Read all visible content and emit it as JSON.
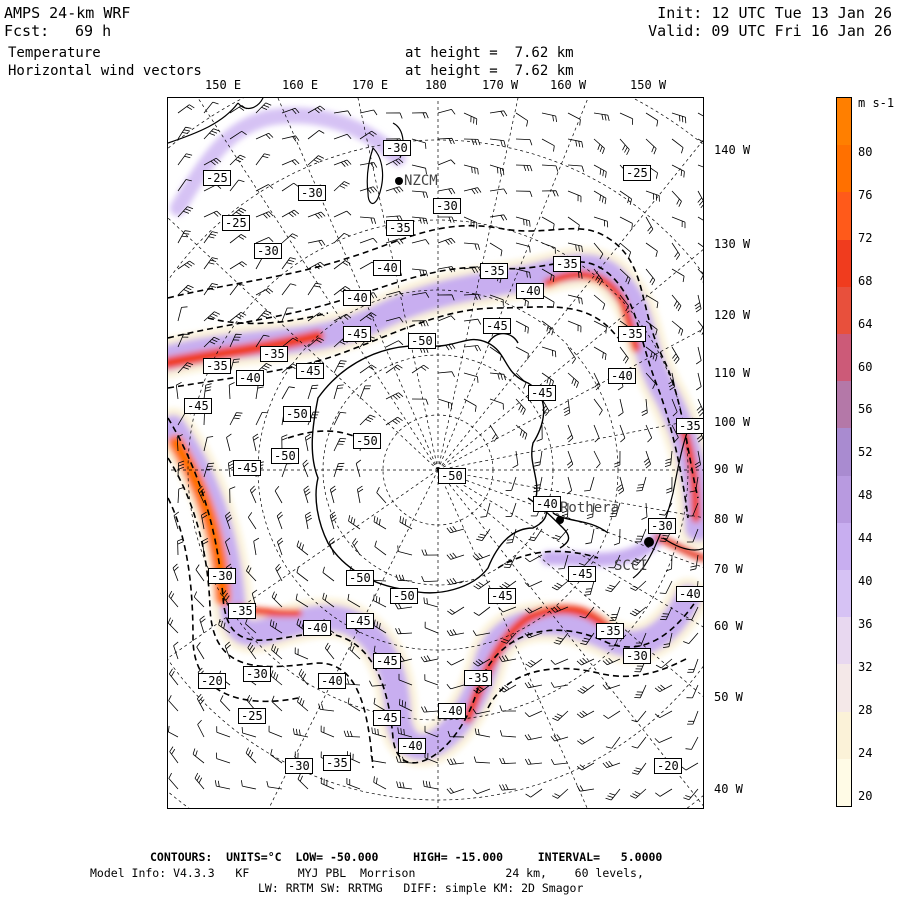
{
  "header": {
    "model": "AMPS 24-km WRF",
    "fcst_label": "Fcst:",
    "fcst_value": "69 h",
    "field1": "Temperature",
    "field2": "Horizontal wind vectors",
    "height1": "at height =  7.62 km",
    "height2": "at height =  7.62 km",
    "init": "Init: 12 UTC Tue 13 Jan 26",
    "valid": "Valid: 09 UTC Fri 16 Jan 26"
  },
  "lon_top": [
    "150 E",
    "160 E",
    "170 E",
    "180",
    "170 W",
    "160 W",
    "150 W"
  ],
  "lon_right": [
    "140 W",
    "130 W",
    "120 W",
    "110 W",
    "100 W",
    "90 W",
    "80 W",
    "70 W",
    "60 W",
    "50 W",
    "40 W"
  ],
  "stations": [
    "NZCM",
    "Rothera",
    "SCCI"
  ],
  "contour_labels": [
    "-20",
    "-25",
    "-30",
    "-35",
    "-40",
    "-45",
    "-50"
  ],
  "colorbar": {
    "unit": "m s-1",
    "ticks": [
      "80",
      "76",
      "72",
      "68",
      "64",
      "60",
      "56",
      "52",
      "48",
      "44",
      "40",
      "36",
      "32",
      "28",
      "24",
      "20"
    ],
    "colors": [
      "#ff7f00",
      "#ff7000",
      "#ff5a1a",
      "#f03c1e",
      "#e8503c",
      "#cc5a78",
      "#b478a8",
      "#a98bd0",
      "#b89ae0",
      "#c8aef0",
      "#d6c2f4",
      "#e8d8f0",
      "#f4e8e8",
      "#fbf2d8",
      "#fffbe6"
    ]
  },
  "footer": {
    "line1": "CONTOURS:  UNITS=°C  LOW= -50.000     HIGH= -15.000     INTERVAL=   5.0000",
    "line2": "Model Info: V4.3.3   KF       MYJ PBL  Morrison             24 km,    60 levels,",
    "line3": "LW: RRTM SW: RRTMG   DIFF: simple KM: 2D Smagor"
  }
}
